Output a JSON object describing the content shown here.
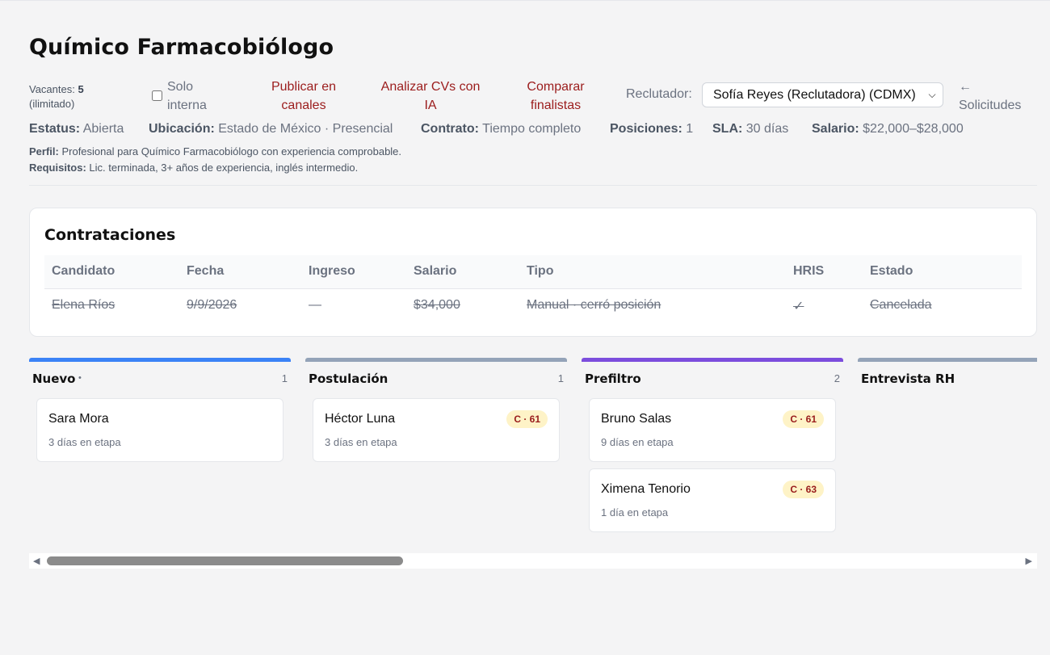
{
  "page_title": "Químico Farmacobiólogo",
  "toolbar": {
    "vacantes_label": "Vacantes:",
    "vacantes_value": "5",
    "vacantes_note": "(ilimitado)",
    "solo_interna_line1": "Solo",
    "solo_interna_line2": "interna",
    "publicar_line1": "Publicar en",
    "publicar_line2": "canales",
    "analizar_line1": "Analizar CVs con",
    "analizar_line2": "IA",
    "comparar_line1": "Comparar",
    "comparar_line2": "finalistas",
    "reclutador_label": "Reclutador:",
    "reclutador_value": "Sofía Reyes (Reclutadora) (CDMX)",
    "back_arrow": "←",
    "back_label": "Solicitudes"
  },
  "meta": {
    "estatus_label": "Estatus:",
    "estatus_value": "Abierta",
    "ubicacion_label": "Ubicación:",
    "ubicacion_value": "Estado de México · Presencial",
    "contrato_label": "Contrato:",
    "contrato_value": "Tiempo completo",
    "posiciones_label": "Posiciones:",
    "posiciones_value": "1",
    "sla_label": "SLA:",
    "sla_value": "30 días",
    "salario_label": "Salario:",
    "salario_value": "$22,000–$28,000"
  },
  "perfil": {
    "perfil_label": "Perfil:",
    "perfil_value": "Profesional para Químico Farmacobiólogo con experiencia comprobable.",
    "requisitos_label": "Requisitos:",
    "requisitos_value": "Lic. terminada, 3+ años de experiencia, inglés intermedio."
  },
  "contrataciones": {
    "title": "Contrataciones",
    "headers": [
      "Candidato",
      "Fecha",
      "Ingreso",
      "Salario",
      "Tipo",
      "HRIS",
      "Estado"
    ],
    "rows": [
      [
        "Elena Ríos",
        "9/9/2026",
        "—",
        "$34,000",
        "Manual · cerró posición",
        "✓",
        "Cancelada"
      ]
    ]
  },
  "kanban": {
    "columns": [
      {
        "name": "Nuevo",
        "dot": "•",
        "count": "1",
        "color": "#3b82f6",
        "cards": [
          {
            "name": "Sara Mora",
            "days": "3 días en etapa",
            "badge": ""
          }
        ]
      },
      {
        "name": "Postulación",
        "dot": "",
        "count": "1",
        "color": "#94a3b8",
        "cards": [
          {
            "name": "Héctor Luna",
            "days": "3 días en etapa",
            "badge": "C · 61"
          }
        ]
      },
      {
        "name": "Prefiltro",
        "dot": "",
        "count": "2",
        "color": "#7c4ddd",
        "cards": [
          {
            "name": "Bruno Salas",
            "days": "9 días en etapa",
            "badge": "C · 61"
          },
          {
            "name": "Ximena Tenorio",
            "days": "1 día en etapa",
            "badge": "C · 63"
          }
        ]
      },
      {
        "name": "Entrevista RH",
        "dot": "",
        "count": "",
        "color": "#94a3b8",
        "cards": []
      }
    ]
  },
  "scrollbar": {
    "left_arrow": "◀",
    "right_arrow": "▶"
  }
}
